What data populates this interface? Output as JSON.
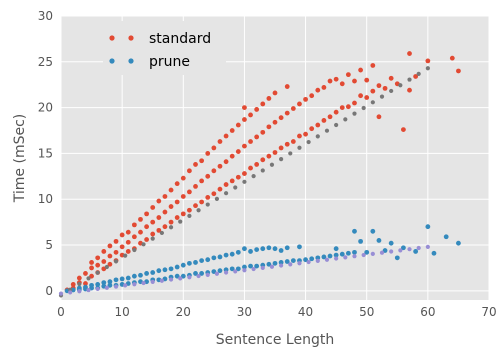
{
  "chart_data": {
    "type": "scatter",
    "xlabel": "Sentence Length",
    "ylabel": "Time (mSec)",
    "xlim": [
      0,
      70
    ],
    "ylim": [
      -1,
      30
    ],
    "xticks": [
      0,
      10,
      20,
      30,
      40,
      50,
      60,
      70
    ],
    "yticks": [
      0,
      5,
      10,
      15,
      20,
      25,
      30
    ],
    "xtick_labels": [
      "0",
      "10",
      "20",
      "30",
      "40",
      "50",
      "60",
      "70"
    ],
    "ytick_labels": [
      "0",
      "5",
      "10",
      "15",
      "20",
      "25",
      "30"
    ],
    "grid": true,
    "legend_position": "top-left",
    "background": "#e5e5e5",
    "series": [
      {
        "name": "standard",
        "color": "#e24a33",
        "marker": "dot",
        "points": [
          [
            1,
            0.1
          ],
          [
            2,
            0.3
          ],
          [
            2,
            0.7
          ],
          [
            3,
            0.9
          ],
          [
            3,
            1.4
          ],
          [
            4,
            0.8
          ],
          [
            4,
            1.9
          ],
          [
            5,
            1.6
          ],
          [
            5,
            2.5
          ],
          [
            5,
            3.1
          ],
          [
            6,
            2.0
          ],
          [
            6,
            2.8
          ],
          [
            6,
            3.6
          ],
          [
            7,
            2.4
          ],
          [
            7,
            3.2
          ],
          [
            7,
            4.3
          ],
          [
            8,
            2.9
          ],
          [
            8,
            3.8
          ],
          [
            8,
            4.9
          ],
          [
            9,
            3.3
          ],
          [
            9,
            4.2
          ],
          [
            9,
            5.4
          ],
          [
            10,
            3.9
          ],
          [
            10,
            4.8
          ],
          [
            10,
            6.1
          ],
          [
            11,
            4.3
          ],
          [
            11,
            5.3
          ],
          [
            11,
            6.4
          ],
          [
            12,
            4.6
          ],
          [
            12,
            5.9
          ],
          [
            12,
            7.2
          ],
          [
            13,
            5.2
          ],
          [
            13,
            6.4
          ],
          [
            13,
            7.8
          ],
          [
            14,
            5.6
          ],
          [
            14,
            7.0
          ],
          [
            14,
            8.4
          ],
          [
            15,
            6.2
          ],
          [
            15,
            7.5
          ],
          [
            15,
            9.1
          ],
          [
            16,
            6.6
          ],
          [
            16,
            8.0
          ],
          [
            16,
            9.8
          ],
          [
            17,
            7.0
          ],
          [
            17,
            8.6
          ],
          [
            17,
            10.3
          ],
          [
            18,
            7.5
          ],
          [
            18,
            9.2
          ],
          [
            18,
            11.0
          ],
          [
            19,
            8.0
          ],
          [
            19,
            9.7
          ],
          [
            19,
            11.7
          ],
          [
            20,
            8.4
          ],
          [
            20,
            10.3
          ],
          [
            20,
            12.3
          ],
          [
            21,
            8.8
          ],
          [
            21,
            10.8
          ],
          [
            21,
            13.1
          ],
          [
            22,
            9.3
          ],
          [
            22,
            11.4
          ],
          [
            22,
            13.8
          ],
          [
            23,
            9.7
          ],
          [
            23,
            12.0
          ],
          [
            23,
            14.2
          ],
          [
            24,
            10.2
          ],
          [
            24,
            12.5
          ],
          [
            24,
            15.0
          ],
          [
            25,
            10.6
          ],
          [
            25,
            13.1
          ],
          [
            25,
            15.6
          ],
          [
            26,
            11.1
          ],
          [
            26,
            13.6
          ],
          [
            26,
            16.3
          ],
          [
            27,
            11.6
          ],
          [
            27,
            14.1
          ],
          [
            27,
            16.9
          ],
          [
            28,
            12.0
          ],
          [
            28,
            14.7
          ],
          [
            28,
            17.5
          ],
          [
            29,
            12.4
          ],
          [
            29,
            15.2
          ],
          [
            29,
            18.1
          ],
          [
            30,
            12.8
          ],
          [
            30,
            15.8
          ],
          [
            30,
            18.7
          ],
          [
            30,
            20.0
          ],
          [
            31,
            13.4
          ],
          [
            31,
            16.3
          ],
          [
            31,
            19.2
          ],
          [
            32,
            13.8
          ],
          [
            32,
            16.8
          ],
          [
            32,
            19.8
          ],
          [
            33,
            14.3
          ],
          [
            33,
            17.3
          ],
          [
            33,
            20.4
          ],
          [
            34,
            14.7
          ],
          [
            34,
            17.9
          ],
          [
            34,
            21.0
          ],
          [
            35,
            15.1
          ],
          [
            35,
            18.4
          ],
          [
            35,
            21.6
          ],
          [
            36,
            15.6
          ],
          [
            36,
            18.9
          ],
          [
            37,
            16.0
          ],
          [
            37,
            19.4
          ],
          [
            37,
            22.3
          ],
          [
            38,
            16.3
          ],
          [
            38,
            19.9
          ],
          [
            39,
            16.9
          ],
          [
            39,
            20.4
          ],
          [
            40,
            17.1
          ],
          [
            40,
            20.9
          ],
          [
            41,
            17.7
          ],
          [
            41,
            21.3
          ],
          [
            42,
            18.1
          ],
          [
            42,
            21.9
          ],
          [
            43,
            18.6
          ],
          [
            43,
            22.2
          ],
          [
            44,
            19.0
          ],
          [
            44,
            22.9
          ],
          [
            45,
            19.5
          ],
          [
            45,
            23.1
          ],
          [
            46,
            20.0
          ],
          [
            46,
            22.6
          ],
          [
            47,
            20.1
          ],
          [
            47,
            23.6
          ],
          [
            48,
            20.5
          ],
          [
            48,
            22.9
          ],
          [
            49,
            21.3
          ],
          [
            49,
            24.1
          ],
          [
            50,
            21.1
          ],
          [
            50,
            23.0
          ],
          [
            51,
            21.8
          ],
          [
            51,
            24.6
          ],
          [
            52,
            22.4
          ],
          [
            52,
            19.0
          ],
          [
            53,
            22.1
          ],
          [
            54,
            23.2
          ],
          [
            55,
            22.6
          ],
          [
            56,
            17.6
          ],
          [
            57,
            25.9
          ],
          [
            57,
            21.9
          ],
          [
            58,
            23.4
          ],
          [
            60,
            25.1
          ],
          [
            64,
            25.4
          ],
          [
            65,
            24.0
          ]
        ]
      },
      {
        "name": "prune",
        "color": "#348abd",
        "marker": "dot",
        "points": [
          [
            1,
            0.0
          ],
          [
            2,
            0.1
          ],
          [
            3,
            0.1
          ],
          [
            3,
            0.3
          ],
          [
            4,
            0.2
          ],
          [
            4,
            0.4
          ],
          [
            5,
            0.3
          ],
          [
            5,
            0.6
          ],
          [
            6,
            0.3
          ],
          [
            6,
            0.7
          ],
          [
            7,
            0.5
          ],
          [
            7,
            0.9
          ],
          [
            8,
            0.6
          ],
          [
            8,
            1.0
          ],
          [
            9,
            0.6
          ],
          [
            9,
            1.2
          ],
          [
            10,
            0.7
          ],
          [
            10,
            1.3
          ],
          [
            11,
            0.8
          ],
          [
            11,
            1.4
          ],
          [
            12,
            0.9
          ],
          [
            12,
            1.6
          ],
          [
            13,
            1.0
          ],
          [
            13,
            1.7
          ],
          [
            14,
            1.0
          ],
          [
            14,
            1.9
          ],
          [
            15,
            1.2
          ],
          [
            15,
            2.0
          ],
          [
            16,
            1.2
          ],
          [
            16,
            2.2
          ],
          [
            17,
            1.3
          ],
          [
            17,
            2.3
          ],
          [
            18,
            1.5
          ],
          [
            18,
            2.4
          ],
          [
            19,
            1.6
          ],
          [
            19,
            2.6
          ],
          [
            20,
            1.6
          ],
          [
            20,
            2.8
          ],
          [
            21,
            1.7
          ],
          [
            21,
            3.0
          ],
          [
            22,
            1.9
          ],
          [
            22,
            3.1
          ],
          [
            23,
            1.9
          ],
          [
            23,
            3.3
          ],
          [
            24,
            2.0
          ],
          [
            24,
            3.4
          ],
          [
            25,
            2.1
          ],
          [
            25,
            3.6
          ],
          [
            26,
            2.2
          ],
          [
            26,
            3.7
          ],
          [
            27,
            2.3
          ],
          [
            27,
            3.9
          ],
          [
            28,
            2.4
          ],
          [
            28,
            4.0
          ],
          [
            29,
            2.4
          ],
          [
            29,
            4.2
          ],
          [
            30,
            2.6
          ],
          [
            30,
            4.6
          ],
          [
            31,
            2.7
          ],
          [
            31,
            4.3
          ],
          [
            32,
            2.7
          ],
          [
            32,
            4.5
          ],
          [
            33,
            2.8
          ],
          [
            33,
            4.6
          ],
          [
            34,
            2.9
          ],
          [
            34,
            4.7
          ],
          [
            35,
            3.0
          ],
          [
            35,
            4.6
          ],
          [
            36,
            3.1
          ],
          [
            36,
            4.4
          ],
          [
            37,
            3.2
          ],
          [
            37,
            4.7
          ],
          [
            38,
            3.3
          ],
          [
            39,
            3.3
          ],
          [
            39,
            4.8
          ],
          [
            40,
            3.4
          ],
          [
            41,
            3.5
          ],
          [
            42,
            3.6
          ],
          [
            43,
            3.7
          ],
          [
            44,
            3.8
          ],
          [
            45,
            3.9
          ],
          [
            45,
            4.6
          ],
          [
            46,
            4.0
          ],
          [
            47,
            4.1
          ],
          [
            48,
            6.5
          ],
          [
            48,
            4.2
          ],
          [
            49,
            5.4
          ],
          [
            50,
            4.2
          ],
          [
            51,
            6.5
          ],
          [
            52,
            5.5
          ],
          [
            53,
            4.4
          ],
          [
            54,
            5.2
          ],
          [
            55,
            3.6
          ],
          [
            56,
            4.7
          ],
          [
            58,
            4.3
          ],
          [
            60,
            7.0
          ],
          [
            61,
            4.1
          ],
          [
            63,
            5.9
          ],
          [
            65,
            5.2
          ]
        ]
      }
    ],
    "fit_lines": [
      {
        "color": "#777777",
        "x": [
          0,
          60
        ],
        "y": [
          -0.5,
          24.3
        ]
      },
      {
        "color": "#988ed5",
        "x": [
          0,
          60
        ],
        "y": [
          -0.3,
          4.8
        ]
      }
    ]
  }
}
